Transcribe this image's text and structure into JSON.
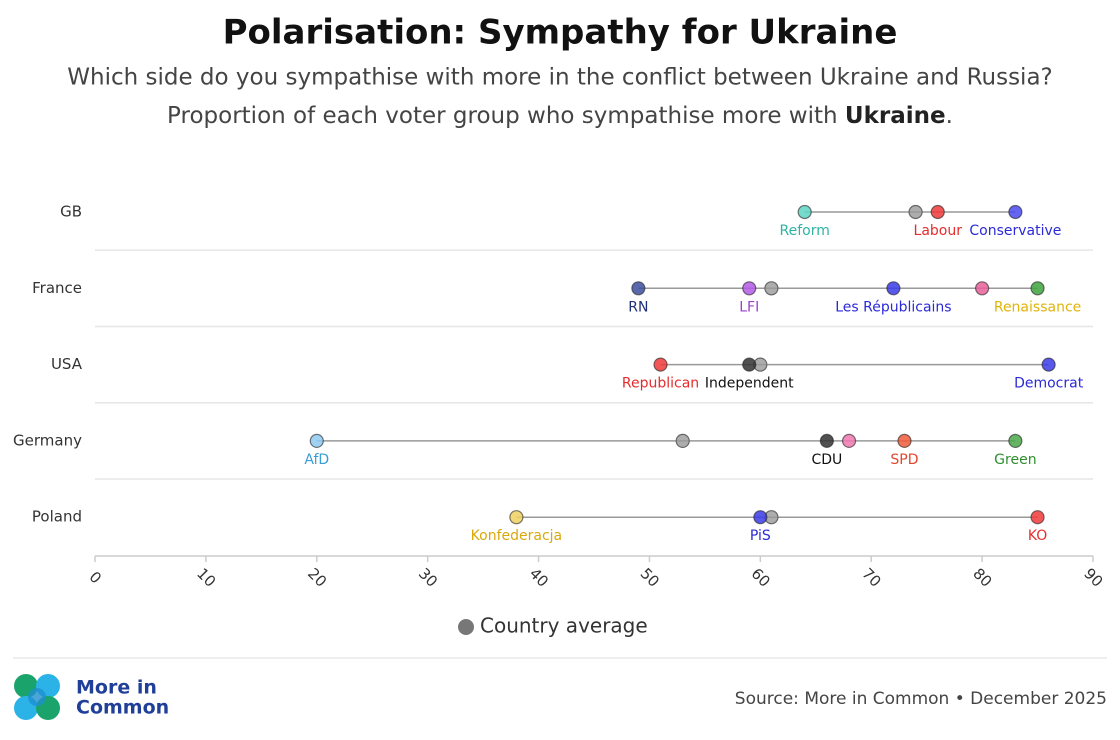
{
  "chart_data": {
    "type": "dot",
    "title": "Polarisation: Sympathy for Ukraine",
    "subtitle": [
      "Which side do you sympathise with more in the conflict between Ukraine and Russia?",
      [
        "Proportion of each voter group who sympathise more with ",
        "Ukraine",
        "."
      ]
    ],
    "xlim": [
      0,
      90
    ],
    "xticks": [
      0,
      10,
      20,
      30,
      40,
      50,
      60,
      70,
      80,
      90
    ],
    "average_label": "Country average",
    "average_color": "#999999",
    "categories": [
      "GB",
      "France",
      "USA",
      "Germany",
      "Poland"
    ],
    "averages": [
      74,
      61,
      60,
      53,
      61
    ],
    "parties": [
      [
        {
          "name": "Reform",
          "value": 64,
          "color": "#5ed3c4",
          "label_color": "#2fb3a3"
        },
        {
          "name": "Labour",
          "value": 76,
          "color": "#f03a3a",
          "label_color": "#e52c2c"
        },
        {
          "name": "Conservative",
          "value": 83,
          "color": "#4a4af0",
          "label_color": "#2a2ad8"
        }
      ],
      [
        {
          "name": "RN",
          "value": 49,
          "color": "#3d4f9e",
          "label_color": "#1f2f7a"
        },
        {
          "name": "LFI",
          "value": 59,
          "color": "#b45ae8",
          "label_color": "#9b3fd6"
        },
        {
          "name": "Les Républicains",
          "value": 72,
          "color": "#3b3be8",
          "label_color": "#2a2ad8"
        },
        {
          "name": null,
          "value": 80,
          "color": "#e8609a",
          "label_color": "#e8609a"
        },
        {
          "name": "Renaissance",
          "value": 85,
          "color": "#3da33d",
          "label_color": "#e0b40a"
        }
      ],
      [
        {
          "name": "Republican",
          "value": 51,
          "color": "#f03a3a",
          "label_color": "#e52c2c"
        },
        {
          "name": "Independent",
          "value": 59,
          "color": "#333333",
          "label_color": "#111111"
        },
        {
          "name": "Democrat",
          "value": 86,
          "color": "#3b3be8",
          "label_color": "#2a2ad8"
        }
      ],
      [
        {
          "name": "AfD",
          "value": 20,
          "color": "#8ec9f0",
          "label_color": "#3a9ed6"
        },
        {
          "name": "CDU",
          "value": 66,
          "color": "#333333",
          "label_color": "#111111"
        },
        {
          "name": null,
          "value": 68,
          "color": "#ef78b0",
          "label_color": "#ef78b0"
        },
        {
          "name": "SPD",
          "value": 73,
          "color": "#f05a3a",
          "label_color": "#e5452c"
        },
        {
          "name": "Green",
          "value": 83,
          "color": "#4aa84a",
          "label_color": "#2e8f2e"
        }
      ],
      [
        {
          "name": "Konfederacja",
          "value": 38,
          "color": "#f0d060",
          "label_color": "#d9a90a"
        },
        {
          "name": "PiS",
          "value": 60,
          "color": "#3b3be8",
          "label_color": "#2a2ad8"
        },
        {
          "name": "KO",
          "value": 85,
          "color": "#f03a3a",
          "label_color": "#e52c2c"
        }
      ]
    ],
    "logo": [
      "More in",
      "Common"
    ],
    "source": "Source: More in Common • December 2025"
  }
}
